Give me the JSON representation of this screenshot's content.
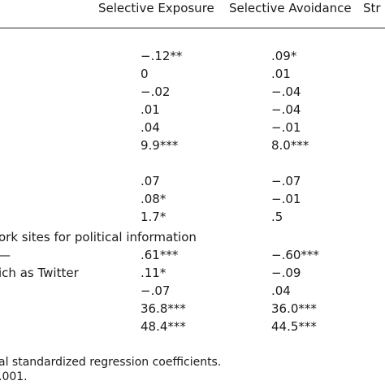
{
  "header": {
    "col1": "Selective Exposure",
    "col2": "Selective Avoidance",
    "col3": "Str"
  },
  "rows": [
    {
      "label": "",
      "c1": "−.12**",
      "c2": ".09*"
    },
    {
      "label": "",
      "c1": "0",
      "c2": ".01"
    },
    {
      "label": "",
      "c1": "−.02",
      "c2": "−.04"
    },
    {
      "label": "",
      "c1": ".01",
      "c2": "−.04"
    },
    {
      "label": "",
      "c1": ".04",
      "c2": "−.01"
    },
    {
      "label": "",
      "c1": "9.9***",
      "c2": "8.0***"
    },
    {
      "label": "",
      "c1": ".07",
      "c2": "−.07"
    },
    {
      "label": "",
      "c1": ".08*",
      "c2": "−.01"
    },
    {
      "label": "",
      "c1": "1.7*",
      "c2": ".5"
    },
    {
      "label": "ork sites for political information",
      "c1": "",
      "c2": ""
    },
    {
      "label": "—",
      "c1": ".61***",
      "c2": "−.60***"
    },
    {
      "label": "ich as Twitter",
      "c1": ".11*",
      "c2": "−.09"
    },
    {
      "label": "",
      "c1": "−.07",
      "c2": ".04"
    },
    {
      "label": "",
      "c1": "36.8***",
      "c2": "36.0***"
    },
    {
      "label": "",
      "c1": "48.4***",
      "c2": "44.5***"
    }
  ],
  "notes": {
    "line1": "al standardized regression coefficients.",
    "line2": ".001."
  }
}
